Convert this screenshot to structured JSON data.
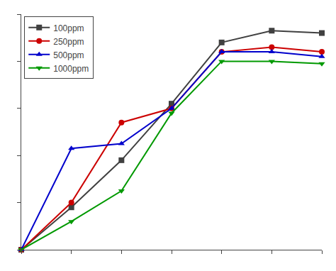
{
  "chart_data": {
    "type": "line",
    "x": [
      0,
      1,
      2,
      3,
      4,
      5,
      6
    ],
    "series": [
      {
        "name": "100ppm",
        "color": "#404040",
        "marker": "square",
        "values": [
          0,
          0.18,
          0.38,
          0.62,
          0.88,
          0.93,
          0.92
        ]
      },
      {
        "name": "250ppm",
        "color": "#cc0000",
        "marker": "circle",
        "values": [
          0,
          0.2,
          0.54,
          0.6,
          0.84,
          0.86,
          0.84
        ]
      },
      {
        "name": "500ppm",
        "color": "#0000cc",
        "marker": "triangle-up",
        "values": [
          0,
          0.43,
          0.45,
          0.6,
          0.84,
          0.84,
          0.82
        ]
      },
      {
        "name": "1000ppm",
        "color": "#009900",
        "marker": "triangle-down",
        "values": [
          0,
          0.12,
          0.25,
          0.58,
          0.8,
          0.8,
          0.79
        ]
      }
    ],
    "xlim": [
      0,
      6
    ],
    "ylim": [
      0,
      1.0
    ],
    "xticks": [
      0,
      1,
      2,
      3,
      4,
      5,
      6
    ],
    "yticks": [
      0,
      0.2,
      0.4,
      0.6,
      0.8,
      1.0
    ],
    "grid": false,
    "legend": "upper left",
    "tick_labels": false
  }
}
